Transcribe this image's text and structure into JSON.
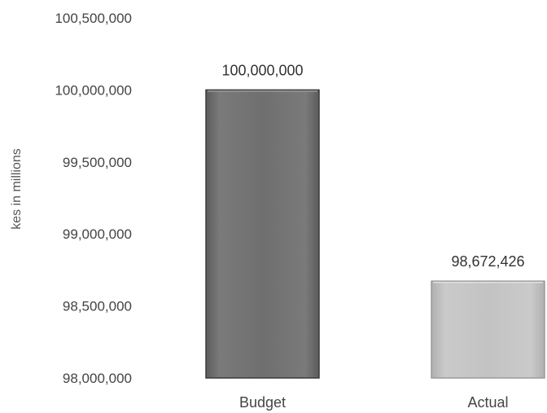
{
  "chart_data": {
    "type": "bar",
    "title": "",
    "xlabel": "",
    "ylabel": "kes in millions",
    "categories": [
      "Budget",
      "Actual"
    ],
    "values": [
      100000000,
      98672426
    ],
    "data_labels": [
      "100,000,000",
      "98,672,426"
    ],
    "ylim": [
      98000000,
      100500000
    ],
    "y_ticks": [
      98000000,
      98500000,
      99000000,
      99500000,
      100000000,
      100500000
    ],
    "y_tick_labels": [
      "98,000,000",
      "98,500,000",
      "99,000,000",
      "99,500,000",
      "100,000,000",
      "100,500,000"
    ],
    "bar_colors": [
      "#6e6e6e",
      "#c2c2c2"
    ],
    "grid": false,
    "legend": "none"
  }
}
